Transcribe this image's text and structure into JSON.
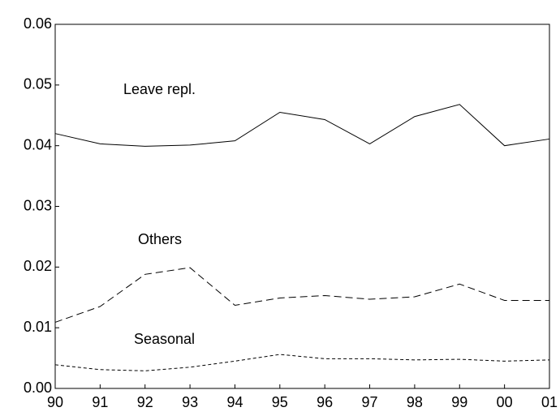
{
  "chart_data": {
    "type": "line",
    "categories": [
      "90",
      "91",
      "92",
      "93",
      "94",
      "95",
      "96",
      "97",
      "98",
      "99",
      "00",
      "01"
    ],
    "series": [
      {
        "name": "Leave repl.",
        "color": "#000000",
        "dash": "none",
        "values": [
          0.042,
          0.0403,
          0.0399,
          0.0401,
          0.0408,
          0.0455,
          0.0443,
          0.0403,
          0.0448,
          0.0468,
          0.04,
          0.0411
        ]
      },
      {
        "name": "Others",
        "color": "#000000",
        "dash": "9,5",
        "values": [
          0.0109,
          0.0135,
          0.0188,
          0.0199,
          0.0137,
          0.0149,
          0.0153,
          0.0147,
          0.0151,
          0.0172,
          0.0145,
          0.0145
        ]
      },
      {
        "name": "Seasonal",
        "color": "#000000",
        "dash": "4,3",
        "values": [
          0.0039,
          0.0031,
          0.0029,
          0.0035,
          0.0045,
          0.0056,
          0.0049,
          0.0049,
          0.0047,
          0.0048,
          0.0045,
          0.0047
        ]
      }
    ],
    "ylim": [
      0,
      0.06
    ],
    "yticks": [
      {
        "value": 0,
        "label": "0.00"
      },
      0.01,
      0.02,
      0.03,
      0.04,
      0.05,
      0.06
    ],
    "grid": false
  }
}
